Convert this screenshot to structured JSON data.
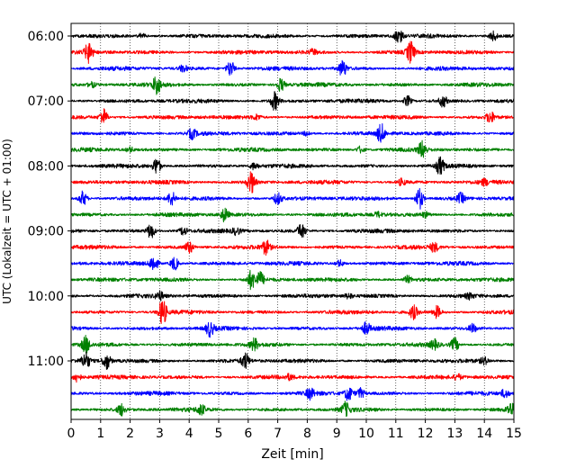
{
  "chart_data": {
    "type": "line",
    "title": "",
    "xlabel": "Zeit  [min]",
    "ylabel": "UTC (Lokalzeit = UTC + 01:00)",
    "xlim": [
      0,
      15
    ],
    "x_ticks": [
      0,
      1,
      2,
      3,
      4,
      5,
      6,
      7,
      8,
      9,
      10,
      11,
      12,
      13,
      14,
      15
    ],
    "x_grid": true,
    "y_ticks": [
      {
        "label": "06:00",
        "row": 0
      },
      {
        "label": "07:00",
        "row": 4
      },
      {
        "label": "08:00",
        "row": 8
      },
      {
        "label": "09:00",
        "row": 12
      },
      {
        "label": "10:00",
        "row": 16
      },
      {
        "label": "11:00",
        "row": 20
      }
    ],
    "series_colors": [
      "#000000",
      "#ff0000",
      "#0000ff",
      "#008000"
    ],
    "rows": [
      {
        "start": "06:00",
        "color": "#000000",
        "spikes": [
          {
            "x": 11.1,
            "a": 0.9
          },
          {
            "x": 14.3,
            "a": 0.6
          },
          {
            "x": 2.4,
            "a": 0.3
          }
        ]
      },
      {
        "start": "06:15",
        "color": "#ff0000",
        "spikes": [
          {
            "x": 0.6,
            "a": 1.2
          },
          {
            "x": 11.5,
            "a": 1.3
          },
          {
            "x": 8.2,
            "a": 0.3
          }
        ]
      },
      {
        "start": "06:30",
        "color": "#0000ff",
        "spikes": [
          {
            "x": 5.4,
            "a": 1.0
          },
          {
            "x": 9.2,
            "a": 1.0
          },
          {
            "x": 3.8,
            "a": 0.4
          }
        ]
      },
      {
        "start": "06:45",
        "color": "#008000",
        "spikes": [
          {
            "x": 2.9,
            "a": 1.1
          },
          {
            "x": 7.1,
            "a": 0.8
          },
          {
            "x": 0.7,
            "a": 0.3
          }
        ]
      },
      {
        "start": "07:00",
        "color": "#000000",
        "spikes": [
          {
            "x": 6.9,
            "a": 1.1
          },
          {
            "x": 12.6,
            "a": 0.7
          },
          {
            "x": 11.4,
            "a": 0.6
          }
        ]
      },
      {
        "start": "07:15",
        "color": "#ff0000",
        "spikes": [
          {
            "x": 1.1,
            "a": 1.0
          },
          {
            "x": 14.2,
            "a": 0.7
          },
          {
            "x": 6.3,
            "a": 0.3
          }
        ]
      },
      {
        "start": "07:30",
        "color": "#0000ff",
        "spikes": [
          {
            "x": 4.1,
            "a": 0.6
          },
          {
            "x": 10.5,
            "a": 1.1
          },
          {
            "x": 8.0,
            "a": 0.3
          }
        ]
      },
      {
        "start": "07:45",
        "color": "#008000",
        "spikes": [
          {
            "x": 11.9,
            "a": 1.0
          },
          {
            "x": 9.8,
            "a": 0.4
          },
          {
            "x": 2.0,
            "a": 0.3
          }
        ]
      },
      {
        "start": "08:00",
        "color": "#000000",
        "spikes": [
          {
            "x": 2.9,
            "a": 1.0
          },
          {
            "x": 12.5,
            "a": 1.0
          },
          {
            "x": 6.2,
            "a": 0.4
          }
        ]
      },
      {
        "start": "08:15",
        "color": "#ff0000",
        "spikes": [
          {
            "x": 6.1,
            "a": 1.3
          },
          {
            "x": 11.2,
            "a": 0.4
          },
          {
            "x": 14.0,
            "a": 0.3
          }
        ]
      },
      {
        "start": "08:30",
        "color": "#0000ff",
        "spikes": [
          {
            "x": 0.4,
            "a": 0.9
          },
          {
            "x": 3.4,
            "a": 0.8
          },
          {
            "x": 7.0,
            "a": 0.7
          },
          {
            "x": 11.8,
            "a": 1.3
          },
          {
            "x": 13.2,
            "a": 0.6
          }
        ]
      },
      {
        "start": "08:45",
        "color": "#008000",
        "spikes": [
          {
            "x": 5.2,
            "a": 0.8
          },
          {
            "x": 10.4,
            "a": 0.3
          },
          {
            "x": 12.0,
            "a": 0.3
          }
        ]
      },
      {
        "start": "09:00",
        "color": "#000000",
        "spikes": [
          {
            "x": 2.7,
            "a": 0.9
          },
          {
            "x": 7.8,
            "a": 0.9
          },
          {
            "x": 3.8,
            "a": 0.5
          },
          {
            "x": 5.6,
            "a": 0.4
          }
        ]
      },
      {
        "start": "09:15",
        "color": "#ff0000",
        "spikes": [
          {
            "x": 4.0,
            "a": 0.7
          },
          {
            "x": 6.6,
            "a": 0.8
          },
          {
            "x": 12.3,
            "a": 0.5
          }
        ]
      },
      {
        "start": "09:30",
        "color": "#0000ff",
        "spikes": [
          {
            "x": 2.8,
            "a": 1.0
          },
          {
            "x": 3.5,
            "a": 0.8
          },
          {
            "x": 9.1,
            "a": 0.4
          }
        ]
      },
      {
        "start": "09:45",
        "color": "#008000",
        "spikes": [
          {
            "x": 6.1,
            "a": 1.1
          },
          {
            "x": 6.4,
            "a": 0.9
          },
          {
            "x": 11.4,
            "a": 0.4
          }
        ]
      },
      {
        "start": "10:00",
        "color": "#000000",
        "spikes": [
          {
            "x": 3.0,
            "a": 0.5
          },
          {
            "x": 9.4,
            "a": 0.3
          },
          {
            "x": 13.5,
            "a": 0.3
          }
        ]
      },
      {
        "start": "10:15",
        "color": "#ff0000",
        "spikes": [
          {
            "x": 3.1,
            "a": 1.6
          },
          {
            "x": 11.6,
            "a": 0.8
          },
          {
            "x": 12.4,
            "a": 0.7
          }
        ]
      },
      {
        "start": "10:30",
        "color": "#0000ff",
        "spikes": [
          {
            "x": 4.7,
            "a": 0.9
          },
          {
            "x": 10.0,
            "a": 0.7
          },
          {
            "x": 13.6,
            "a": 0.5
          }
        ]
      },
      {
        "start": "10:45",
        "color": "#008000",
        "spikes": [
          {
            "x": 0.5,
            "a": 1.0
          },
          {
            "x": 6.2,
            "a": 0.7
          },
          {
            "x": 13.0,
            "a": 0.8
          },
          {
            "x": 12.3,
            "a": 0.5
          }
        ]
      },
      {
        "start": "11:00",
        "color": "#000000",
        "spikes": [
          {
            "x": 0.5,
            "a": 1.0
          },
          {
            "x": 1.2,
            "a": 1.0
          },
          {
            "x": 5.9,
            "a": 0.9
          },
          {
            "x": 14.0,
            "a": 0.4
          }
        ]
      },
      {
        "start": "11:15",
        "color": "#ff0000",
        "spikes": [
          {
            "x": 0.2,
            "a": 0.6
          },
          {
            "x": 7.4,
            "a": 0.3
          },
          {
            "x": 13.1,
            "a": 0.3
          }
        ]
      },
      {
        "start": "11:30",
        "color": "#0000ff",
        "spikes": [
          {
            "x": 8.1,
            "a": 0.6
          },
          {
            "x": 9.4,
            "a": 0.9
          },
          {
            "x": 9.8,
            "a": 0.6
          },
          {
            "x": 14.7,
            "a": 0.5
          }
        ]
      },
      {
        "start": "11:45",
        "color": "#008000",
        "spikes": [
          {
            "x": 1.7,
            "a": 0.7
          },
          {
            "x": 4.4,
            "a": 0.6
          },
          {
            "x": 9.3,
            "a": 0.8
          },
          {
            "x": 14.9,
            "a": 0.7
          }
        ]
      }
    ]
  }
}
